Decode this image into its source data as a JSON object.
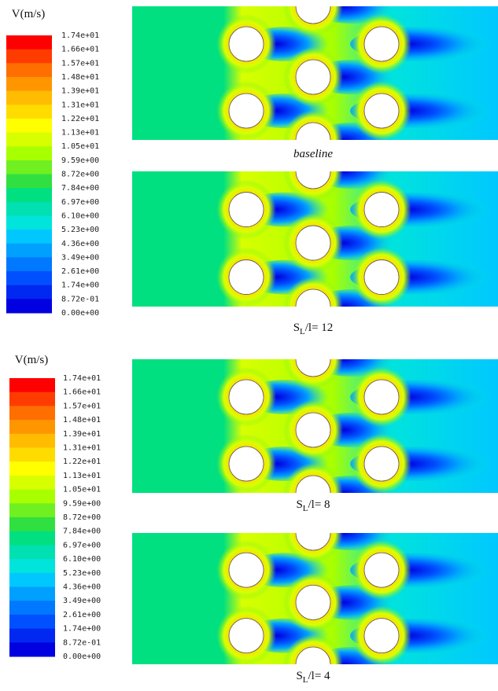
{
  "colorbars": [
    {
      "title": "V(m/s)",
      "labels": [
        "1.74e+01",
        "1.66e+01",
        "1.57e+01",
        "1.48e+01",
        "1.39e+01",
        "1.31e+01",
        "1.22e+01",
        "1.13e+01",
        "1.05e+01",
        "9.59e+00",
        "8.72e+00",
        "7.84e+00",
        "6.97e+00",
        "6.10e+00",
        "5.23e+00",
        "4.36e+00",
        "3.49e+00",
        "2.61e+00",
        "1.74e+00",
        "8.72e-01",
        "0.00e+00"
      ]
    },
    {
      "title": "V(m/s)",
      "labels": [
        "1.74e+01",
        "1.66e+01",
        "1.57e+01",
        "1.48e+01",
        "1.39e+01",
        "1.31e+01",
        "1.22e+01",
        "1.13e+01",
        "1.05e+01",
        "9.59e+00",
        "8.72e+00",
        "7.84e+00",
        "6.97e+00",
        "6.10e+00",
        "5.23e+00",
        "4.36e+00",
        "3.49e+00",
        "2.61e+00",
        "1.74e+00",
        "8.72e-01",
        "0.00e+00"
      ]
    }
  ],
  "colors": [
    "#ff0000",
    "#ff3c00",
    "#ff6e00",
    "#ff9600",
    "#ffbc00",
    "#ffdc00",
    "#ffff00",
    "#d8ff00",
    "#a8ff00",
    "#70f020",
    "#30e040",
    "#00e080",
    "#00e0b0",
    "#00e4dc",
    "#00c8ff",
    "#00a0ff",
    "#0078ff",
    "#0050ff",
    "#0028f0",
    "#0000e0"
  ],
  "panels": [
    {
      "caption": {
        "text": "baseline"
      }
    },
    {
      "caption": {
        "symbol": "S",
        "subscript": "L",
        "suffix": "/l= 12"
      }
    },
    {
      "caption": {
        "symbol": "S",
        "subscript": "L",
        "suffix": "/l= 8"
      }
    },
    {
      "caption": {
        "symbol": "S",
        "subscript": "L",
        "suffix": "/l= 4"
      }
    }
  ]
}
